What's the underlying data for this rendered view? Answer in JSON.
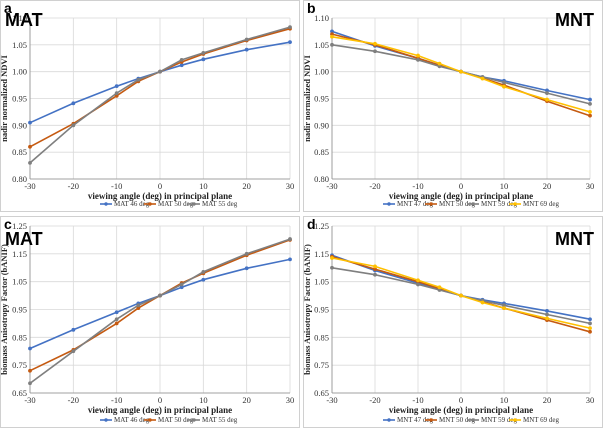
{
  "chart_data": [
    {
      "type": "line",
      "panel_label": "a",
      "title": "MAT",
      "xlabel": "viewing angle (deg) in principal plane",
      "ylabel": "nadir normalized NDVI",
      "xlim": [
        -30,
        30
      ],
      "ylim": [
        0.8,
        1.1
      ],
      "xticks": [
        -30,
        -20,
        -10,
        0,
        10,
        20,
        30
      ],
      "yticks": [
        0.8,
        0.85,
        0.9,
        0.95,
        1.0,
        1.05,
        1.1
      ],
      "ytick_labels": [
        "0.80",
        "0.85",
        "0.90",
        "0.95",
        "1.00",
        "1.05",
        "1.10"
      ],
      "series": [
        {
          "name": "MAT 46 deg",
          "color": "#4472c4",
          "x": [
            -30,
            -20,
            -10,
            -5,
            0,
            5,
            10,
            20,
            30
          ],
          "y": [
            0.905,
            0.941,
            0.973,
            0.987,
            1.0,
            1.012,
            1.023,
            1.041,
            1.055
          ]
        },
        {
          "name": "MAT 50 deg",
          "color": "#c55a11",
          "x": [
            -30,
            -20,
            -10,
            -5,
            0,
            5,
            10,
            20,
            30
          ],
          "y": [
            0.86,
            0.903,
            0.955,
            0.982,
            1.0,
            1.018,
            1.033,
            1.058,
            1.08
          ]
        },
        {
          "name": "MAT 55 deg",
          "color": "#7f7f7f",
          "x": [
            -30,
            -20,
            -10,
            -5,
            0,
            5,
            10,
            20,
            30
          ],
          "y": [
            0.83,
            0.9,
            0.96,
            0.985,
            1.0,
            1.022,
            1.035,
            1.06,
            1.083
          ]
        }
      ]
    },
    {
      "type": "line",
      "panel_label": "b",
      "title": "MNT",
      "xlabel": "viewing angle (deg) in principal plane",
      "ylabel": "nadir normalized NDVI",
      "xlim": [
        -30,
        30
      ],
      "ylim": [
        0.8,
        1.1
      ],
      "xticks": [
        -30,
        -20,
        -10,
        0,
        10,
        20,
        30
      ],
      "yticks": [
        0.8,
        0.85,
        0.9,
        0.95,
        1.0,
        1.05,
        1.1
      ],
      "ytick_labels": [
        "0.80",
        "0.85",
        "0.90",
        "0.95",
        "1.00",
        "1.05",
        "1.10"
      ],
      "series": [
        {
          "name": "MNT 47 deg",
          "color": "#4472c4",
          "x": [
            -30,
            -20,
            -10,
            -5,
            0,
            5,
            10,
            20,
            30
          ],
          "y": [
            1.075,
            1.048,
            1.025,
            1.012,
            1.0,
            0.99,
            0.983,
            0.965,
            0.948
          ]
        },
        {
          "name": "MNT 50 deg",
          "color": "#c55a11",
          "x": [
            -30,
            -20,
            -10,
            -5,
            0,
            5,
            10,
            20,
            30
          ],
          "y": [
            1.07,
            1.05,
            1.025,
            1.012,
            1.0,
            0.988,
            0.975,
            0.945,
            0.918
          ]
        },
        {
          "name": "MNT 59 deg",
          "color": "#7f7f7f",
          "x": [
            -30,
            -20,
            -10,
            -5,
            0,
            5,
            10,
            20,
            30
          ],
          "y": [
            1.05,
            1.038,
            1.022,
            1.01,
            1.0,
            0.99,
            0.98,
            0.96,
            0.94
          ]
        },
        {
          "name": "MNT 69 deg",
          "color": "#ffc000",
          "x": [
            -30,
            -20,
            -10,
            -5,
            0,
            5,
            10,
            20,
            30
          ],
          "y": [
            1.065,
            1.052,
            1.03,
            1.015,
            1.0,
            0.987,
            0.972,
            0.948,
            0.925
          ]
        }
      ]
    },
    {
      "type": "line",
      "panel_label": "c",
      "title": "MAT",
      "xlabel": "viewing angle (deg) in principal plane",
      "ylabel": "biomass Anisotropy Factor (bANIF)",
      "xlim": [
        -30,
        30
      ],
      "ylim": [
        0.65,
        1.25
      ],
      "xticks": [
        -30,
        -20,
        -10,
        0,
        10,
        20,
        30
      ],
      "yticks": [
        0.65,
        0.75,
        0.85,
        0.95,
        1.05,
        1.15,
        1.25
      ],
      "ytick_labels": [
        "0.65",
        "0.75",
        "0.85",
        "0.95",
        "1.05",
        "1.15",
        "1.25"
      ],
      "series": [
        {
          "name": "MAT 46 deg",
          "color": "#4472c4",
          "x": [
            -30,
            -20,
            -10,
            -5,
            0,
            5,
            10,
            20,
            30
          ],
          "y": [
            0.81,
            0.877,
            0.94,
            0.972,
            1.0,
            1.03,
            1.057,
            1.098,
            1.13
          ]
        },
        {
          "name": "MAT 50 deg",
          "color": "#c55a11",
          "x": [
            -30,
            -20,
            -10,
            -5,
            0,
            5,
            10,
            20,
            30
          ],
          "y": [
            0.73,
            0.805,
            0.9,
            0.955,
            1.0,
            1.045,
            1.08,
            1.145,
            1.2
          ]
        },
        {
          "name": "MAT 55 deg",
          "color": "#7f7f7f",
          "x": [
            -30,
            -20,
            -10,
            -5,
            0,
            5,
            10,
            20,
            30
          ],
          "y": [
            0.685,
            0.8,
            0.915,
            0.965,
            1.0,
            1.04,
            1.085,
            1.15,
            1.203
          ]
        }
      ]
    },
    {
      "type": "line",
      "panel_label": "d",
      "title": "MNT",
      "xlabel": "viewing angle (deg) in principal plane",
      "ylabel": "biomass Anisotropy Factor (bANIF)",
      "xlim": [
        -30,
        30
      ],
      "ylim": [
        0.65,
        1.25
      ],
      "xticks": [
        -30,
        -20,
        -10,
        0,
        10,
        20,
        30
      ],
      "yticks": [
        0.65,
        0.75,
        0.85,
        0.95,
        1.05,
        1.15,
        1.25
      ],
      "ytick_labels": [
        "0.65",
        "0.75",
        "0.85",
        "0.95",
        "1.05",
        "1.15",
        "1.25"
      ],
      "series": [
        {
          "name": "MNT 47 deg",
          "color": "#4472c4",
          "x": [
            -30,
            -20,
            -10,
            -5,
            0,
            5,
            10,
            20,
            30
          ],
          "y": [
            1.145,
            1.09,
            1.045,
            1.022,
            1.0,
            0.985,
            0.972,
            0.945,
            0.915
          ]
        },
        {
          "name": "MNT 50 deg",
          "color": "#c55a11",
          "x": [
            -30,
            -20,
            -10,
            -5,
            0,
            5,
            10,
            20,
            30
          ],
          "y": [
            1.14,
            1.095,
            1.05,
            1.025,
            1.0,
            0.978,
            0.955,
            0.912,
            0.87
          ]
        },
        {
          "name": "MNT 59 deg",
          "color": "#7f7f7f",
          "x": [
            -30,
            -20,
            -10,
            -5,
            0,
            5,
            10,
            20,
            30
          ],
          "y": [
            1.1,
            1.075,
            1.04,
            1.02,
            1.0,
            0.982,
            0.965,
            0.932,
            0.9
          ]
        },
        {
          "name": "MNT 69 deg",
          "color": "#ffc000",
          "x": [
            -30,
            -20,
            -10,
            -5,
            0,
            5,
            10,
            20,
            30
          ],
          "y": [
            1.135,
            1.105,
            1.055,
            1.03,
            1.0,
            0.975,
            0.955,
            0.918,
            0.883
          ]
        }
      ]
    }
  ]
}
